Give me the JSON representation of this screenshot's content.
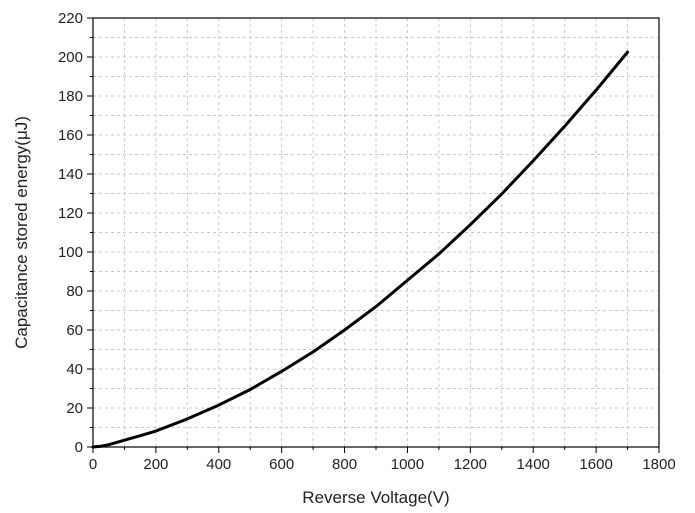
{
  "chart_data": {
    "type": "line",
    "title": "",
    "xlabel": "Reverse Voltage(V)",
    "ylabel": "Capacitance stored energy(μJ)",
    "xlim": [
      0,
      1800
    ],
    "ylim": [
      0,
      220
    ],
    "x_ticks": [
      0,
      200,
      400,
      600,
      800,
      1000,
      1200,
      1400,
      1600,
      1800
    ],
    "y_ticks": [
      0,
      20,
      40,
      60,
      80,
      100,
      120,
      140,
      160,
      180,
      200,
      220
    ],
    "grid": true,
    "line_color": "#000000",
    "series": [
      {
        "x": [
          0,
          25,
          50,
          100,
          150,
          200,
          300,
          400,
          500,
          600,
          700,
          800,
          900,
          1000,
          1100,
          1200,
          1300,
          1400,
          1500,
          1600,
          1700
        ],
        "y": [
          0,
          0.4,
          1.2,
          3.5,
          5.8,
          8.2,
          14.4,
          21.5,
          29.5,
          38.8,
          48.8,
          60.0,
          72.0,
          85.5,
          99.0,
          114.0,
          129.8,
          146.8,
          164.5,
          183.0,
          202.5
        ]
      }
    ]
  }
}
